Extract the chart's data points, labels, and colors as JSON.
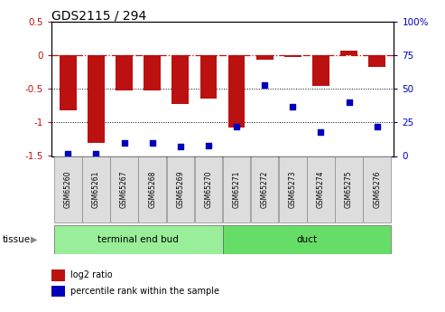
{
  "title": "GDS2115 / 294",
  "samples": [
    "GSM65260",
    "GSM65261",
    "GSM65267",
    "GSM65268",
    "GSM65269",
    "GSM65270",
    "GSM65271",
    "GSM65272",
    "GSM65273",
    "GSM65274",
    "GSM65275",
    "GSM65276"
  ],
  "log2_ratio": [
    -0.82,
    -1.3,
    -0.52,
    -0.52,
    -0.72,
    -0.65,
    -1.07,
    -0.07,
    -0.03,
    -0.45,
    0.07,
    -0.17
  ],
  "percentile_rank": [
    2,
    2,
    10,
    10,
    7,
    8,
    22,
    53,
    37,
    18,
    40,
    22
  ],
  "tissue_groups": [
    {
      "label": "terminal end bud",
      "start": 0,
      "end": 5,
      "color": "#99EE99"
    },
    {
      "label": "duct",
      "start": 6,
      "end": 11,
      "color": "#66DD66"
    }
  ],
  "ylim_left": [
    -1.5,
    0.5
  ],
  "ylim_right": [
    0,
    100
  ],
  "yticks_left": [
    -1.5,
    -1.0,
    -0.5,
    0.0,
    0.5
  ],
  "yticks_right": [
    0,
    25,
    50,
    75,
    100
  ],
  "bar_color": "#BB1111",
  "dot_color": "#0000BB",
  "hline_color": "#BB1111",
  "dotline_color": "black",
  "bar_width": 0.6,
  "legend_red_label": "log2 ratio",
  "legend_blue_label": "percentile rank within the sample",
  "tissue_label": "tissue",
  "sample_box_color": "#DDDDDD",
  "sample_box_edge": "#888888"
}
